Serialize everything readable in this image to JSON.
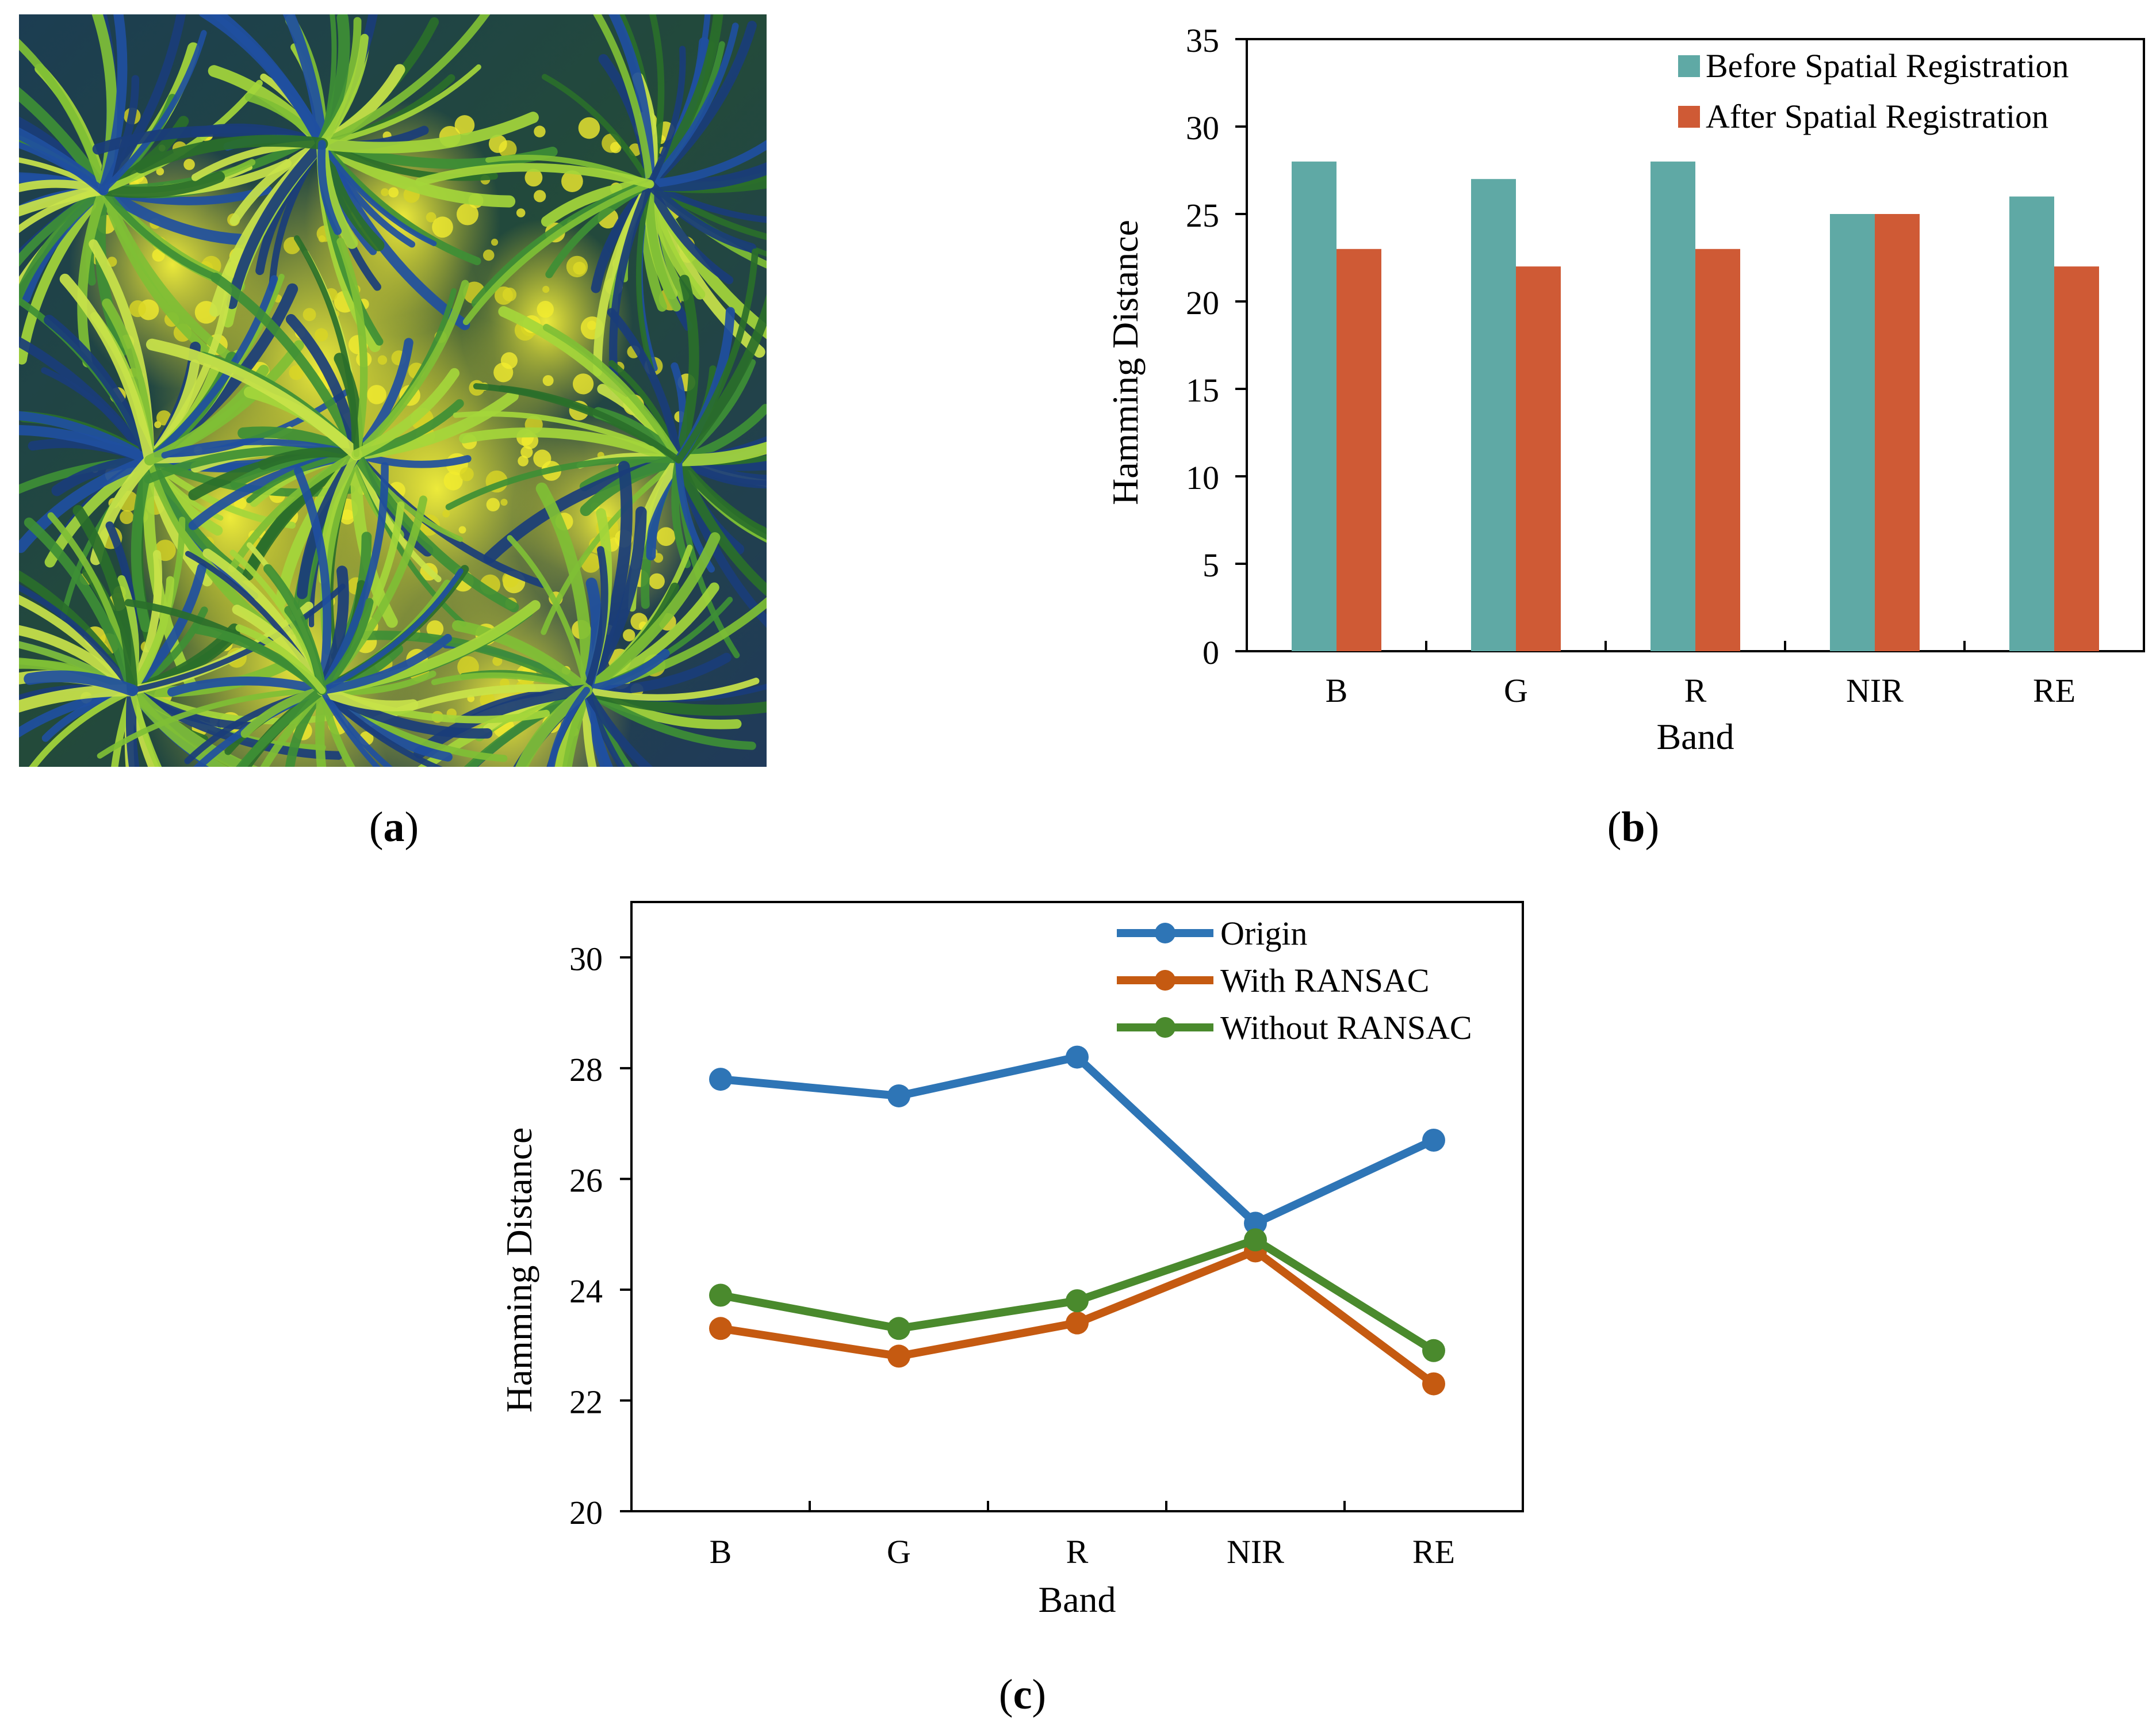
{
  "panels": {
    "a": {
      "label_open": "(",
      "label_letter": "a",
      "label_close": ")"
    },
    "b": {
      "label_open": "(",
      "label_letter": "b",
      "label_close": ")"
    },
    "c": {
      "label_open": "(",
      "label_letter": "c",
      "label_close": ")"
    }
  },
  "photo": {
    "description_icon": "plant-canopy-photo"
  },
  "chart_data": [
    {
      "id": "b",
      "type": "bar",
      "title": "",
      "xlabel": "Band",
      "ylabel": "Hamming Distance",
      "categories": [
        "B",
        "G",
        "R",
        "NIR",
        "RE"
      ],
      "ylim": [
        0,
        35
      ],
      "yticks": [
        0,
        5,
        10,
        15,
        20,
        25,
        30,
        35
      ],
      "series": [
        {
          "name": "Before Spatial Registration",
          "color": "#5fa9a5",
          "values": [
            28,
            27,
            28,
            25,
            26
          ]
        },
        {
          "name": "After Spatial Registration",
          "color": "#cf5a35",
          "values": [
            23,
            22,
            23,
            25,
            22
          ]
        }
      ],
      "legend": "top-right",
      "grid": false
    },
    {
      "id": "c",
      "type": "line",
      "title": "",
      "xlabel": "Band",
      "ylabel": "Hamming Distance",
      "categories": [
        "B",
        "G",
        "R",
        "NIR",
        "RE"
      ],
      "ylim": [
        20,
        31
      ],
      "yticks": [
        20,
        22,
        24,
        26,
        28,
        30
      ],
      "series": [
        {
          "name": "Origin",
          "color": "#2e75b6",
          "values": [
            27.8,
            27.5,
            28.2,
            25.2,
            26.7
          ]
        },
        {
          "name": "With RANSAC",
          "color": "#c55a11",
          "values": [
            23.3,
            22.8,
            23.4,
            24.7,
            22.3
          ]
        },
        {
          "name": "Without RANSAC",
          "color": "#4a8a2d",
          "values": [
            23.9,
            23.3,
            23.8,
            24.9,
            22.9
          ]
        }
      ],
      "legend": "top-right",
      "grid": false
    }
  ]
}
